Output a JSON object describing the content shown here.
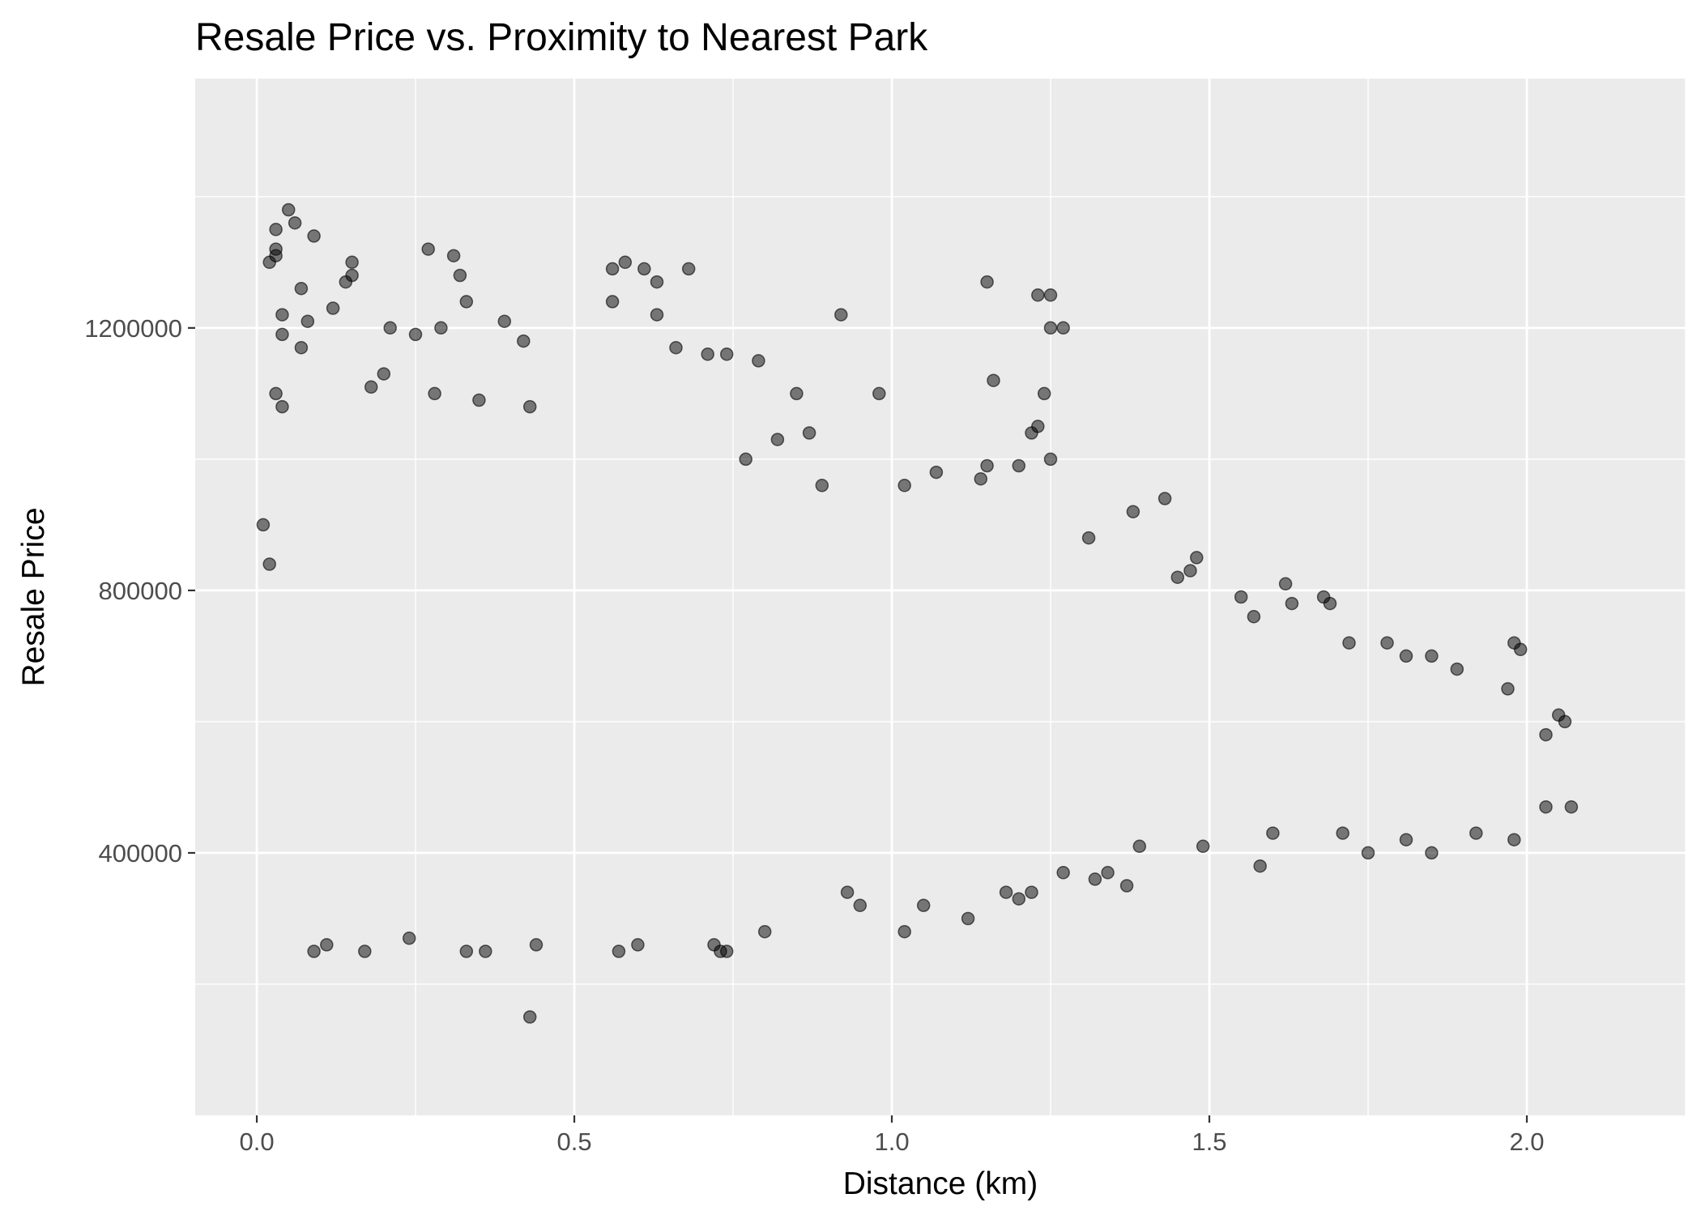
{
  "chart_data": {
    "type": "scatter",
    "title": "Resale Price vs. Proximity to Nearest Park",
    "xlabel": "Distance (km)",
    "ylabel": "Resale Price",
    "xlim": [
      -0.097,
      2.25
    ],
    "ylim": [
      0,
      1580000
    ],
    "x_ticks": [
      0.0,
      0.5,
      1.0,
      1.5,
      2.0
    ],
    "x_tick_labels": [
      "0.0",
      "0.5",
      "1.0",
      "1.5",
      "2.0"
    ],
    "y_ticks": [
      400000,
      800000,
      1200000
    ],
    "y_tick_labels": [
      "400000",
      "800000",
      "1200000"
    ],
    "grid": true,
    "legend": "none",
    "point_color": "#000000",
    "point_alpha": 0.5,
    "panel_background": "#ebebeb",
    "grid_color": "#ffffff",
    "series": [
      {
        "x": [
          0.05,
          0.06,
          0.09,
          0.03,
          0.27,
          0.31,
          0.15,
          0.58,
          0.61,
          0.03,
          0.03,
          0.02,
          0.07,
          0.14,
          0.15,
          0.56,
          0.32,
          0.63,
          0.68,
          0.04,
          0.08,
          0.12,
          0.04,
          0.33,
          0.07,
          0.21,
          0.25,
          0.29,
          0.39,
          0.42,
          0.56,
          0.63,
          0.66,
          1.15,
          1.23,
          1.25,
          0.92,
          1.25,
          1.27,
          0.71,
          0.74,
          0.79,
          1.24,
          1.16,
          0.18,
          0.2,
          0.03,
          0.04,
          0.28,
          0.35,
          0.43,
          0.98,
          1.22,
          0.85,
          1.23,
          0.82,
          0.87,
          0.77,
          1.15,
          1.2,
          1.14,
          1.25,
          1.02,
          1.07,
          0.89,
          1.43,
          1.38,
          1.48,
          1.47,
          1.45,
          1.31,
          1.55,
          1.62,
          1.63,
          1.68,
          1.57,
          1.69,
          1.72,
          1.78,
          1.81,
          1.85,
          1.89,
          1.97,
          1.98,
          1.99,
          2.05,
          2.06,
          2.03,
          2.07,
          1.98,
          2.03,
          1.92,
          1.85,
          1.81,
          1.75,
          1.71,
          1.6,
          1.58,
          1.49,
          1.39,
          1.37,
          1.27,
          1.18,
          1.12,
          1.05,
          1.02,
          0.74,
          0.72,
          0.09,
          0.11,
          0.17,
          0.24,
          0.33,
          0.36,
          0.44,
          0.57,
          0.6,
          0.73,
          0.43,
          0.01,
          0.02,
          1.32,
          1.34,
          1.2,
          1.22,
          0.8,
          0.93,
          0.95
        ],
        "y": [
          1380000,
          1360000,
          1340000,
          1310000,
          1320000,
          1310000,
          1300000,
          1300000,
          1290000,
          1350000,
          1320000,
          1300000,
          1260000,
          1270000,
          1280000,
          1290000,
          1280000,
          1270000,
          1290000,
          1220000,
          1210000,
          1230000,
          1190000,
          1240000,
          1170000,
          1200000,
          1190000,
          1200000,
          1210000,
          1180000,
          1240000,
          1220000,
          1170000,
          1270000,
          1250000,
          1250000,
          1220000,
          1200000,
          1200000,
          1160000,
          1160000,
          1150000,
          1100000,
          1120000,
          1110000,
          1130000,
          1100000,
          1080000,
          1100000,
          1090000,
          1080000,
          1100000,
          1040000,
          1100000,
          1050000,
          1030000,
          1040000,
          1000000,
          990000,
          990000,
          970000,
          1000000,
          960000,
          980000,
          960000,
          940000,
          920000,
          850000,
          830000,
          820000,
          880000,
          790000,
          810000,
          780000,
          790000,
          760000,
          780000,
          720000,
          720000,
          700000,
          700000,
          680000,
          650000,
          720000,
          710000,
          610000,
          600000,
          580000,
          470000,
          420000,
          470000,
          430000,
          400000,
          420000,
          400000,
          430000,
          430000,
          380000,
          410000,
          410000,
          350000,
          370000,
          340000,
          300000,
          320000,
          280000,
          250000,
          260000,
          250000,
          260000,
          250000,
          270000,
          250000,
          250000,
          260000,
          250000,
          260000,
          250000,
          150000,
          900000,
          840000,
          360000,
          370000,
          330000,
          340000,
          280000,
          340000,
          320000
        ]
      }
    ]
  }
}
